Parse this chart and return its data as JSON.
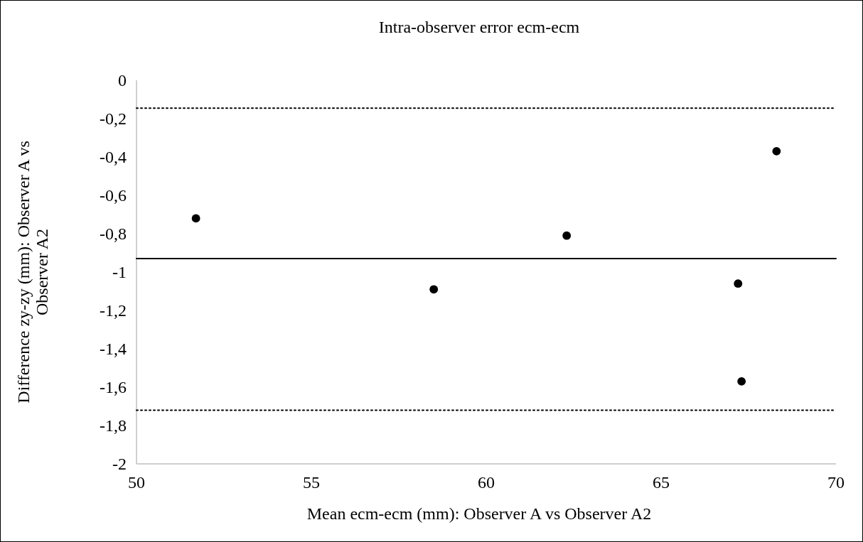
{
  "chart_data": {
    "type": "scatter",
    "title": "Intra-observer error ecm-ecm",
    "xlabel": "Mean ecm-ecm (mm): Observer A vs Observer A2",
    "ylabel": "Difference zy-zy (mm): Observer A vs Observer A2",
    "x": [
      51.7,
      58.5,
      62.3,
      68.3,
      67.2,
      67.3
    ],
    "series": [
      {
        "color": "#000000",
        "values": [
          -0.72,
          -1.09,
          -0.81,
          -0.37,
          -1.06,
          -1.57
        ]
      }
    ],
    "marker": "circle",
    "xlim": [
      50,
      70
    ],
    "xticks": [
      50,
      55,
      60,
      65,
      70
    ],
    "ylim": [
      -2,
      0
    ],
    "yticks": [
      0,
      {
        "value": -0.2,
        "label": "-0,2"
      },
      {
        "value": -0.4,
        "label": "-0,4"
      },
      {
        "value": -0.6,
        "label": "-0,6"
      },
      {
        "value": -0.8,
        "label": "-0,8"
      },
      -1,
      {
        "value": -1.2,
        "label": "-1,2"
      },
      {
        "value": -1.4,
        "label": "-1,4"
      },
      {
        "value": -1.6,
        "label": "-1,6"
      },
      {
        "value": -1.8,
        "label": "-1,8"
      },
      -2
    ],
    "ref_lines": [
      {
        "axis": "y",
        "value": -0.145,
        "color": "#000000",
        "line_style": "dotted"
      },
      {
        "axis": "y",
        "value": -0.93,
        "color": "#000000",
        "line_style": "solid"
      },
      {
        "axis": "y",
        "value": -1.72,
        "color": "#000000",
        "line_style": "dotted"
      }
    ],
    "grid": false
  }
}
